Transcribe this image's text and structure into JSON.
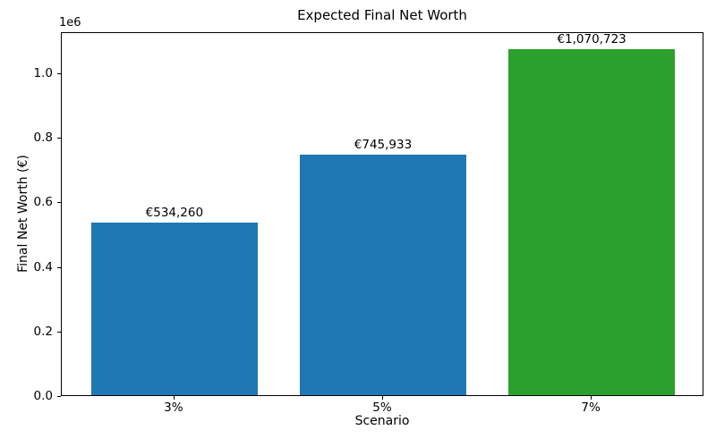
{
  "chart_data": {
    "type": "bar",
    "title": "Expected Final Net Worth",
    "xlabel": "Scenario",
    "ylabel": "Final Net Worth (€)",
    "categories": [
      "3%",
      "5%",
      "7%"
    ],
    "values": [
      534260,
      745933,
      1070723
    ],
    "value_labels": [
      "€534,260",
      "€745,933",
      "€1,070,723"
    ],
    "bar_colors": [
      "#1f77b4",
      "#1f77b4",
      "#2ca02c"
    ],
    "ylim": [
      0,
      1127000
    ],
    "yticks": [
      0,
      200000,
      400000,
      600000,
      800000,
      1000000
    ],
    "ytick_labels": [
      "0.0",
      "0.2",
      "0.4",
      "0.6",
      "0.8",
      "1.0"
    ],
    "y_offset_text": "1e6",
    "grid": false,
    "legend_position": "none",
    "axis_color": "#000000",
    "background_color": "#ffffff"
  }
}
